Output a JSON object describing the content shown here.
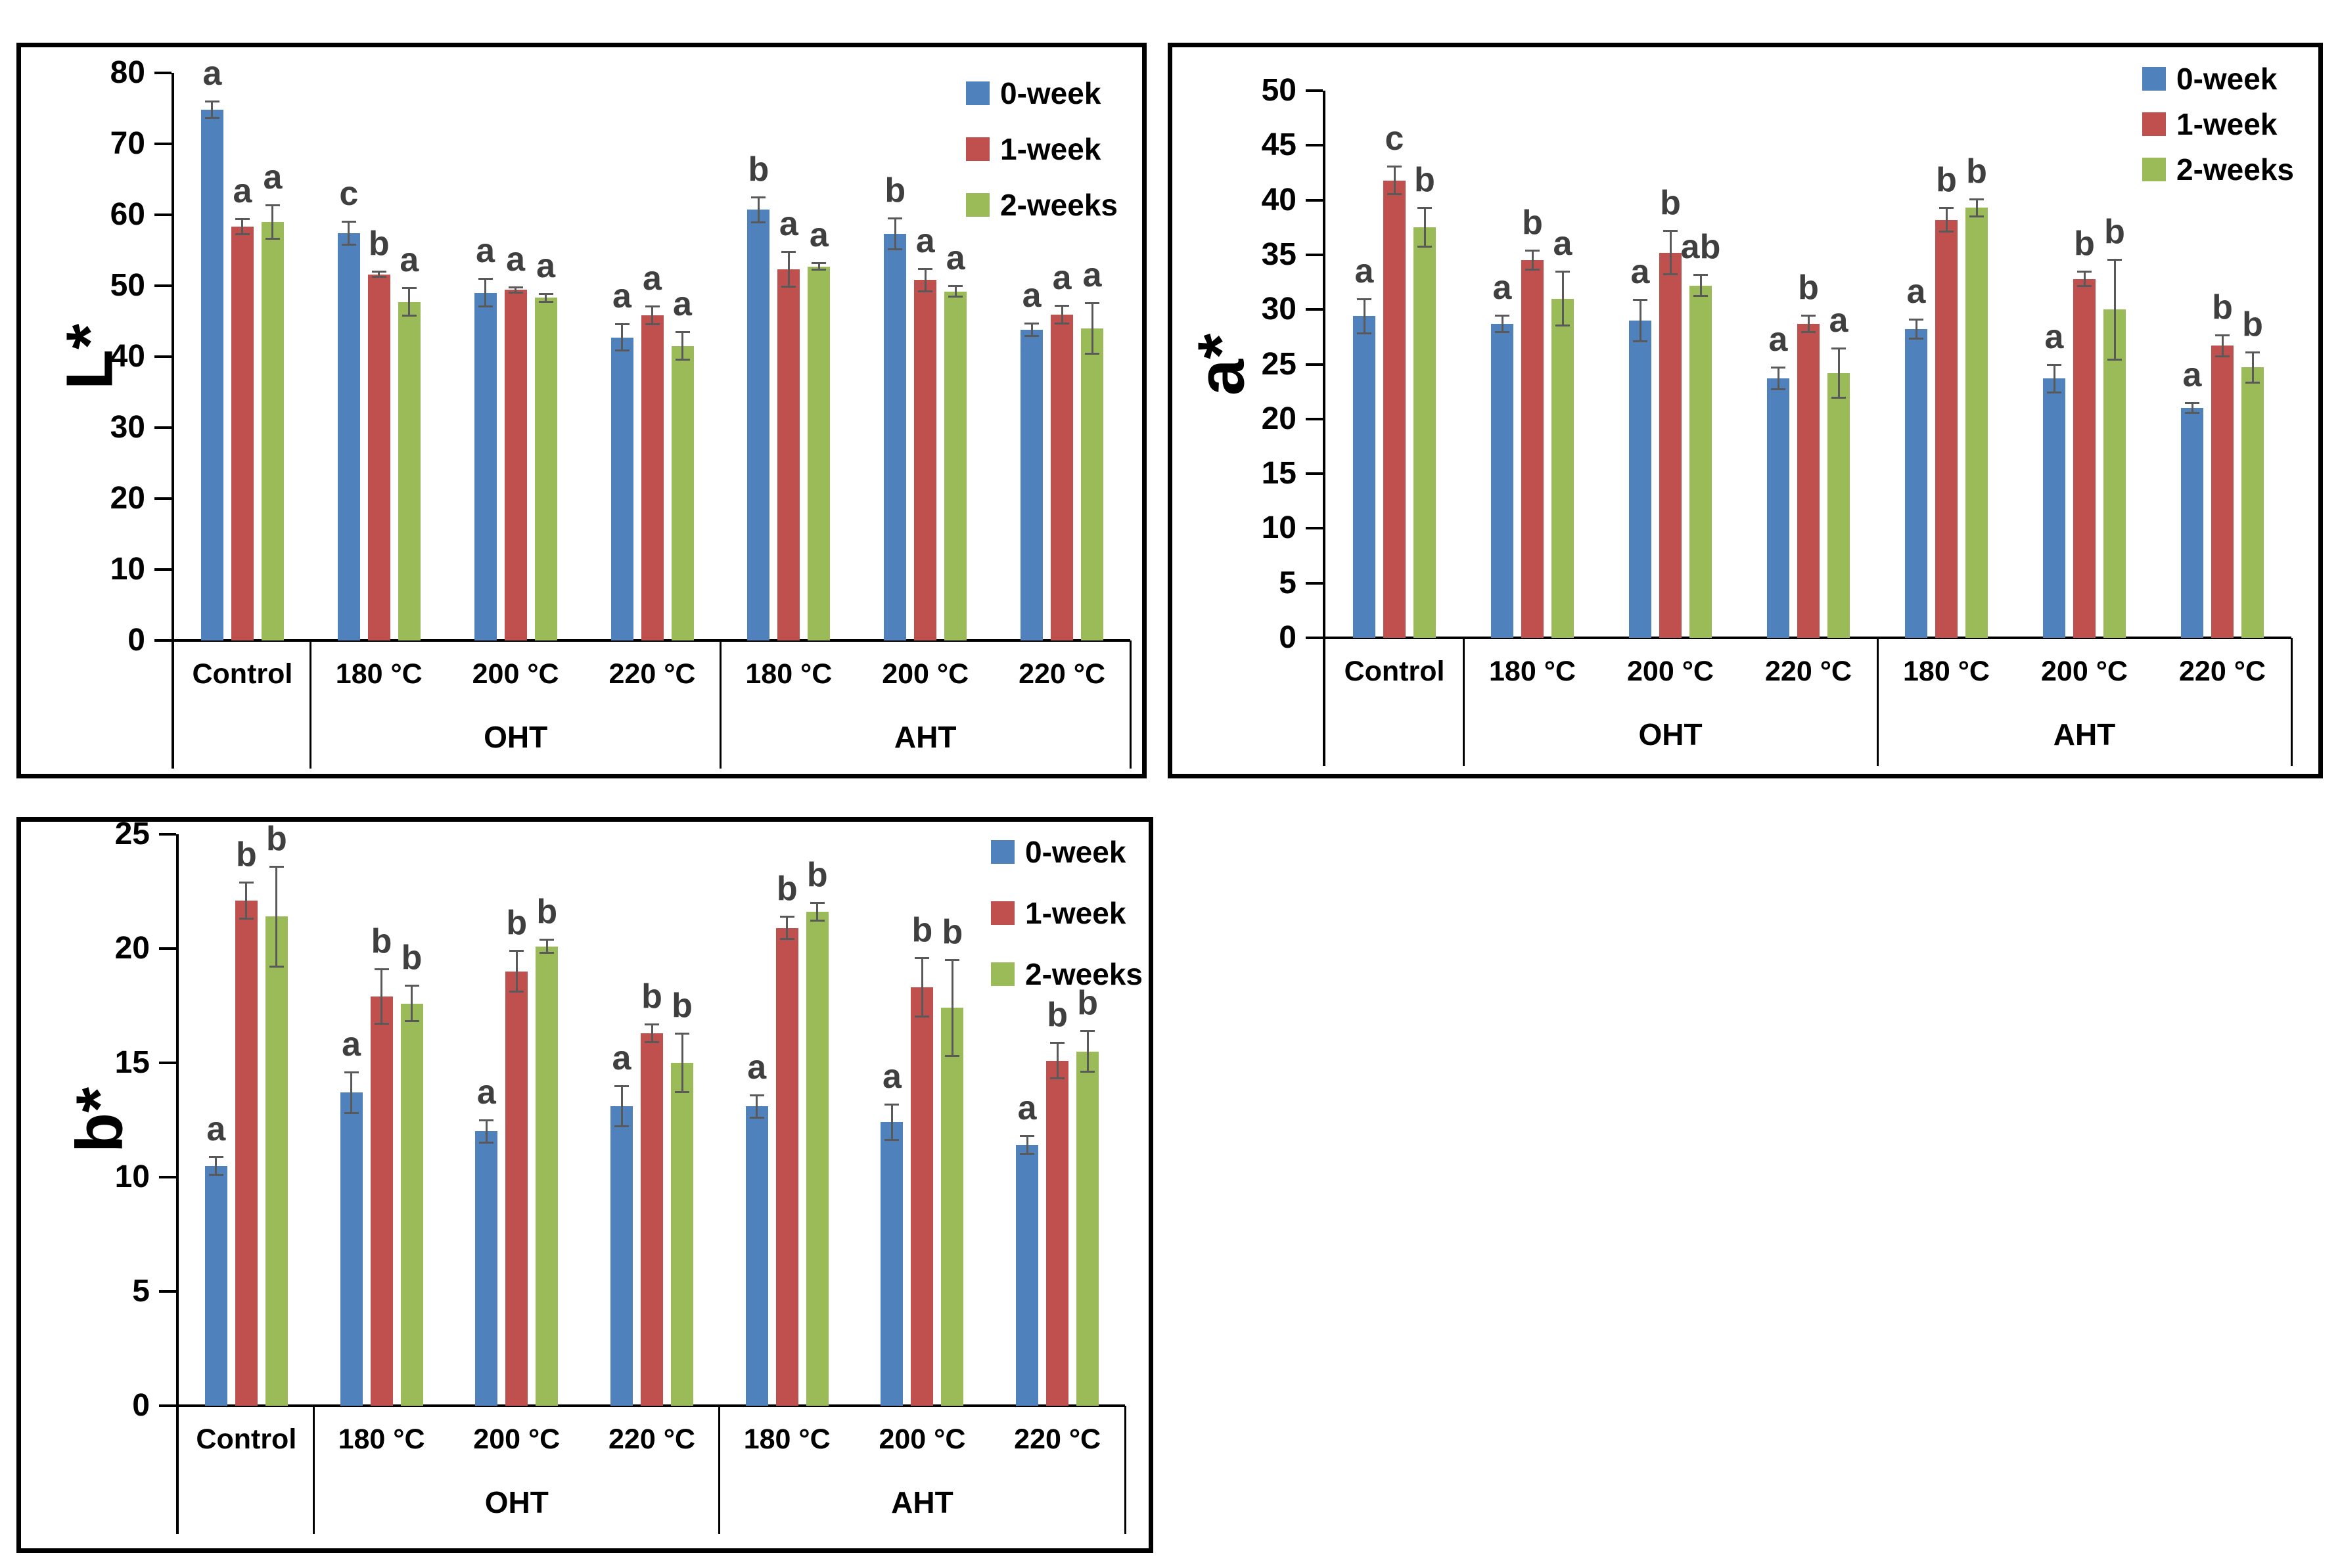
{
  "figure": {
    "background": "#ffffff"
  },
  "colors": {
    "series": [
      "#4F81BD",
      "#C0504D",
      "#9BBB59"
    ],
    "error_bar": "#595959",
    "letter": "#3F3F3F",
    "axis": "#000000"
  },
  "legend": {
    "items": [
      "0-week",
      "1-week",
      "2-weeks"
    ],
    "position": "top-right"
  },
  "x_axis": {
    "categories": [
      "Control",
      "180 °C",
      "200 °C",
      "220 °C",
      "180 °C",
      "200 °C",
      "220 °C"
    ],
    "groups": [
      {
        "label": "",
        "cols": 1
      },
      {
        "label": "OHT",
        "cols": 3
      },
      {
        "label": "AHT",
        "cols": 3
      }
    ]
  },
  "chart_data": [
    {
      "id": "L-star",
      "type": "bar",
      "title": "",
      "ylabel": "L*",
      "xlabel": "",
      "ylim": [
        0,
        80
      ],
      "ytick_step": 10,
      "grid": false,
      "legend_position": "top-right",
      "categories": [
        "Control",
        "180 °C",
        "200 °C",
        "220 °C",
        "180 °C",
        "200 °C",
        "220 °C"
      ],
      "series": [
        {
          "name": "0-week",
          "values": [
            74.8,
            57.4,
            49.0,
            42.7,
            60.7,
            57.3,
            43.8
          ],
          "errors": [
            1.2,
            1.7,
            2.0,
            1.9,
            1.8,
            2.2,
            0.9
          ],
          "letters": [
            "a",
            "c",
            "a",
            "a",
            "b",
            "b",
            "a"
          ]
        },
        {
          "name": "1-week",
          "values": [
            58.3,
            51.6,
            49.4,
            45.8,
            52.3,
            50.8,
            45.9
          ],
          "errors": [
            1.1,
            0.4,
            0.4,
            1.3,
            2.5,
            1.6,
            1.3
          ],
          "letters": [
            "a",
            "b",
            "a",
            "a",
            "a",
            "a",
            "a"
          ]
        },
        {
          "name": "2-weeks",
          "values": [
            59.0,
            47.7,
            48.3,
            41.5,
            52.7,
            49.2,
            44.0
          ],
          "errors": [
            2.4,
            2.0,
            0.6,
            2.0,
            0.5,
            0.8,
            3.6
          ],
          "letters": [
            "a",
            "a",
            "a",
            "a",
            "a",
            "a",
            "a"
          ]
        }
      ]
    },
    {
      "id": "a-star",
      "type": "bar",
      "title": "",
      "ylabel": "a*",
      "xlabel": "",
      "ylim": [
        0,
        50
      ],
      "ytick_step": 5,
      "grid": false,
      "legend_position": "top-right",
      "categories": [
        "Control",
        "180 °C",
        "200 °C",
        "220 °C",
        "180 °C",
        "200 °C",
        "220 °C"
      ],
      "series": [
        {
          "name": "0-week",
          "values": [
            29.4,
            28.7,
            29.0,
            23.7,
            28.2,
            23.7,
            21.0
          ],
          "errors": [
            1.6,
            0.8,
            1.9,
            1.0,
            0.9,
            1.3,
            0.5
          ],
          "letters": [
            "a",
            "a",
            "a",
            "a",
            "a",
            "a",
            "a"
          ]
        },
        {
          "name": "1-week",
          "values": [
            41.8,
            34.5,
            35.2,
            28.7,
            38.2,
            32.8,
            26.7
          ],
          "errors": [
            1.3,
            0.9,
            2.0,
            0.8,
            1.1,
            0.7,
            1.0
          ],
          "letters": [
            "c",
            "b",
            "b",
            "b",
            "b",
            "b",
            "b"
          ]
        },
        {
          "name": "2-weeks",
          "values": [
            37.5,
            31.0,
            32.2,
            24.2,
            39.3,
            30.0,
            24.7
          ],
          "errors": [
            1.8,
            2.5,
            1.0,
            2.3,
            0.8,
            4.6,
            1.4
          ],
          "letters": [
            "b",
            "a",
            "ab",
            "a",
            "b",
            "b",
            "b"
          ]
        }
      ]
    },
    {
      "id": "b-star",
      "type": "bar",
      "title": "",
      "ylabel": "b*",
      "xlabel": "",
      "ylim": [
        0,
        25
      ],
      "ytick_step": 5,
      "grid": false,
      "legend_position": "top-right",
      "categories": [
        "Control",
        "180 °C",
        "200 °C",
        "220 °C",
        "180 °C",
        "200 °C",
        "220 °C"
      ],
      "series": [
        {
          "name": "0-week",
          "values": [
            10.5,
            13.7,
            12.0,
            13.1,
            13.1,
            12.4,
            11.4
          ],
          "errors": [
            0.4,
            0.9,
            0.5,
            0.9,
            0.5,
            0.8,
            0.4
          ],
          "letters": [
            "a",
            "a",
            "a",
            "a",
            "a",
            "a",
            "a"
          ]
        },
        {
          "name": "1-week",
          "values": [
            22.1,
            17.9,
            19.0,
            16.3,
            20.9,
            18.3,
            15.1
          ],
          "errors": [
            0.8,
            1.2,
            0.9,
            0.4,
            0.5,
            1.3,
            0.8
          ],
          "letters": [
            "b",
            "b",
            "b",
            "b",
            "b",
            "b",
            "b"
          ]
        },
        {
          "name": "2-weeks",
          "values": [
            21.4,
            17.6,
            20.1,
            15.0,
            21.6,
            17.4,
            15.5
          ],
          "errors": [
            2.2,
            0.8,
            0.3,
            1.3,
            0.4,
            2.1,
            0.9
          ],
          "letters": [
            "b",
            "b",
            "b",
            "b",
            "b",
            "b",
            "b"
          ]
        }
      ]
    }
  ]
}
